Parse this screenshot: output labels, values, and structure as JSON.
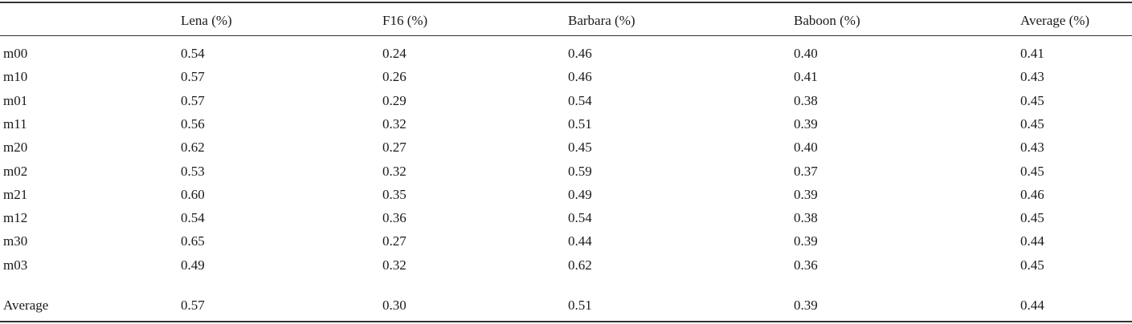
{
  "table": {
    "columns": [
      "Lena (%)",
      "F16 (%)",
      "Barbara (%)",
      "Baboon (%)",
      "Average (%)"
    ],
    "rows": [
      [
        "m00",
        "0.54",
        "0.24",
        "0.46",
        "0.40",
        "0.41"
      ],
      [
        "m10",
        "0.57",
        "0.26",
        "0.46",
        "0.41",
        "0.43"
      ],
      [
        "m01",
        "0.57",
        "0.29",
        "0.54",
        "0.38",
        "0.45"
      ],
      [
        "m11",
        "0.56",
        "0.32",
        "0.51",
        "0.39",
        "0.45"
      ],
      [
        "m20",
        "0.62",
        "0.27",
        "0.45",
        "0.40",
        "0.43"
      ],
      [
        "m02",
        "0.53",
        "0.32",
        "0.59",
        "0.37",
        "0.45"
      ],
      [
        "m21",
        "0.60",
        "0.35",
        "0.49",
        "0.39",
        "0.46"
      ],
      [
        "m12",
        "0.54",
        "0.36",
        "0.54",
        "0.38",
        "0.45"
      ],
      [
        "m30",
        "0.65",
        "0.27",
        "0.44",
        "0.39",
        "0.44"
      ],
      [
        "m03",
        "0.49",
        "0.32",
        "0.62",
        "0.36",
        "0.45"
      ]
    ],
    "footer": [
      "Average",
      "0.57",
      "0.30",
      "0.51",
      "0.39",
      "0.44"
    ]
  }
}
